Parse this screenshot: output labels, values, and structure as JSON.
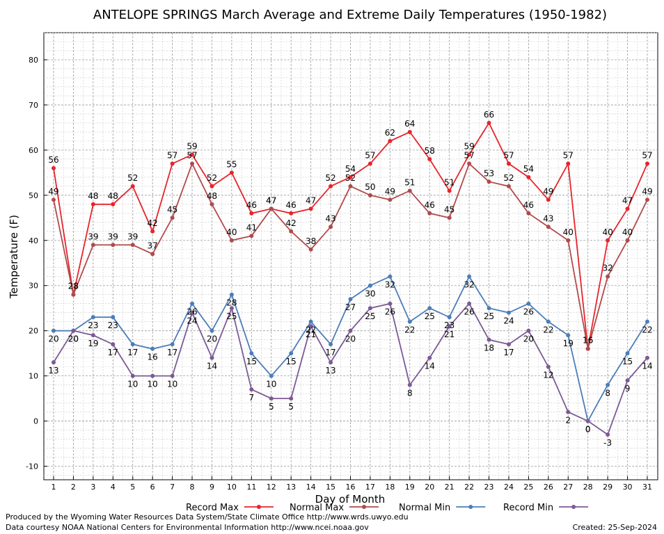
{
  "footer": {
    "produced_by": "Produced by the Wyoming Water Resources Data System/State Climate Office http://www.wrds.uwyo.edu",
    "courtesy": "Data courtesy NOAA National Centers for Environmental Information http://www.ncei.noaa.gov",
    "created": "Created:  25-Sep-2024"
  },
  "chart_data": {
    "type": "line",
    "title": "ANTELOPE SPRINGS March Average and Extreme Daily Temperatures (1950-1982)",
    "xlabel": "Day of Month",
    "ylabel": "Temperature (F)",
    "ylim": [
      -13,
      86
    ],
    "yticks": [
      -10,
      0,
      10,
      20,
      30,
      40,
      50,
      60,
      70,
      80
    ],
    "x": [
      1,
      2,
      3,
      4,
      5,
      6,
      7,
      8,
      9,
      10,
      11,
      12,
      13,
      14,
      15,
      16,
      17,
      18,
      19,
      20,
      21,
      22,
      23,
      24,
      25,
      26,
      27,
      28,
      29,
      30,
      31
    ],
    "grid": true,
    "legend_position": "bottom",
    "series": [
      {
        "name": "Record Max",
        "color": "#e8232b",
        "label_pos": "above",
        "values": [
          56,
          28,
          48,
          48,
          52,
          42,
          57,
          59,
          52,
          55,
          46,
          47,
          46,
          47,
          52,
          54,
          57,
          62,
          64,
          58,
          51,
          59,
          66,
          57,
          54,
          49,
          57,
          16,
          40,
          47,
          57
        ]
      },
      {
        "name": "Normal Max",
        "color": "#b04a4c",
        "label_pos": "above",
        "values": [
          49,
          28,
          39,
          39,
          39,
          37,
          45,
          57,
          48,
          40,
          41,
          47,
          42,
          38,
          43,
          52,
          50,
          49,
          51,
          46,
          45,
          57,
          53,
          52,
          46,
          43,
          40,
          16,
          32,
          40,
          49
        ]
      },
      {
        "name": "Normal Min",
        "color": "#4c7db8",
        "label_pos": "below",
        "values": [
          20,
          20,
          23,
          23,
          17,
          16,
          17,
          26,
          20,
          28,
          15,
          10,
          15,
          22,
          17,
          27,
          30,
          32,
          22,
          25,
          23,
          32,
          25,
          24,
          26,
          22,
          19,
          0,
          8,
          15,
          22
        ]
      },
      {
        "name": "Record Min",
        "color": "#7b5a95",
        "label_pos": "below",
        "values": [
          13,
          20,
          19,
          17,
          10,
          10,
          10,
          24,
          14,
          25,
          7,
          5,
          5,
          21,
          13,
          20,
          25,
          26,
          8,
          14,
          21,
          26,
          18,
          17,
          20,
          12,
          2,
          0,
          -3,
          9,
          14
        ]
      }
    ]
  }
}
